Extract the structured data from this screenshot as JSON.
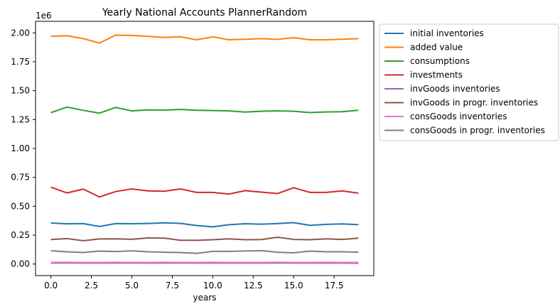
{
  "chart_data": {
    "type": "line",
    "title": "Yearly National Accounts PlannerRandom",
    "xlabel": "years",
    "ylabel": "",
    "y_multiplier_label": "1e6",
    "xlim": [
      -0.95,
      19.95
    ],
    "ylim": [
      -0.1,
      2.1
    ],
    "x_ticks": [
      0,
      2.5,
      5,
      7.5,
      10,
      12.5,
      15,
      17.5
    ],
    "x_tick_labels": [
      "0.0",
      "2.5",
      "5.0",
      "7.5",
      "10.0",
      "12.5",
      "15.0",
      "17.5"
    ],
    "y_ticks": [
      0,
      0.25,
      0.5,
      0.75,
      1.0,
      1.25,
      1.5,
      1.75,
      2.0
    ],
    "y_tick_labels": [
      "0.00",
      "0.25",
      "0.50",
      "0.75",
      "1.00",
      "1.25",
      "1.50",
      "1.75",
      "2.00"
    ],
    "grid": false,
    "legend_position": "outside-right",
    "x": [
      0,
      1,
      2,
      3,
      4,
      5,
      6,
      7,
      8,
      9,
      10,
      11,
      12,
      13,
      14,
      15,
      16,
      17,
      18,
      19
    ],
    "series": [
      {
        "name": "initial inventories",
        "color": "#1f77b4",
        "values": [
          0.355,
          0.348,
          0.35,
          0.325,
          0.35,
          0.349,
          0.351,
          0.356,
          0.352,
          0.333,
          0.322,
          0.34,
          0.349,
          0.345,
          0.35,
          0.358,
          0.335,
          0.343,
          0.347,
          0.341
        ]
      },
      {
        "name": "added value",
        "color": "#ff7f0e",
        "values": [
          1.97,
          1.975,
          1.95,
          1.912,
          1.98,
          1.978,
          1.97,
          1.96,
          1.966,
          1.94,
          1.966,
          1.94,
          1.945,
          1.95,
          1.944,
          1.958,
          1.94,
          1.94,
          1.945,
          1.95
        ]
      },
      {
        "name": "consumptions",
        "color": "#2ca02c",
        "values": [
          1.31,
          1.358,
          1.33,
          1.305,
          1.355,
          1.325,
          1.333,
          1.332,
          1.337,
          1.33,
          1.328,
          1.325,
          1.315,
          1.322,
          1.325,
          1.322,
          1.31,
          1.316,
          1.318,
          1.33
        ]
      },
      {
        "name": "investments",
        "color": "#d62728",
        "values": [
          0.665,
          0.615,
          0.648,
          0.58,
          0.627,
          0.65,
          0.633,
          0.63,
          0.65,
          0.62,
          0.62,
          0.605,
          0.635,
          0.622,
          0.61,
          0.66,
          0.62,
          0.62,
          0.633,
          0.613
        ]
      },
      {
        "name": "invGoods inventories",
        "color": "#9467bd",
        "values": [
          0.008,
          0.009,
          0.008,
          0.008,
          0.008,
          0.009,
          0.008,
          0.008,
          0.009,
          0.008,
          0.008,
          0.008,
          0.008,
          0.008,
          0.009,
          0.008,
          0.008,
          0.008,
          0.008,
          0.007
        ]
      },
      {
        "name": "invGoods in progr. inventories",
        "color": "#8c564b",
        "values": [
          0.212,
          0.22,
          0.202,
          0.217,
          0.218,
          0.214,
          0.226,
          0.224,
          0.206,
          0.205,
          0.21,
          0.218,
          0.21,
          0.212,
          0.232,
          0.213,
          0.21,
          0.218,
          0.213,
          0.224
        ]
      },
      {
        "name": "consGoods inventories",
        "color": "#e377c2",
        "values": [
          0.014,
          0.015,
          0.014,
          0.014,
          0.015,
          0.014,
          0.014,
          0.015,
          0.014,
          0.014,
          0.015,
          0.014,
          0.014,
          0.014,
          0.015,
          0.014,
          0.014,
          0.015,
          0.014,
          0.014
        ]
      },
      {
        "name": "consGoods in progr. inventories",
        "color": "#7f7f7f",
        "values": [
          0.115,
          0.106,
          0.1,
          0.112,
          0.108,
          0.114,
          0.106,
          0.102,
          0.1,
          0.092,
          0.11,
          0.11,
          0.113,
          0.116,
          0.102,
          0.097,
          0.112,
          0.106,
          0.106,
          0.103
        ]
      }
    ]
  }
}
